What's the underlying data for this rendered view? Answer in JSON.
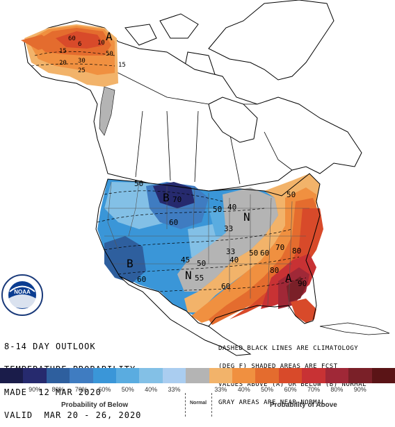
{
  "header": {
    "line1": "8-14 DAY OUTLOOK",
    "line2": "TEMPERATURE PROBABILITY",
    "line3": "MADE  12 MAR 2020",
    "line4": "VALID  MAR 20 - 26, 2020"
  },
  "note": {
    "line1": "DASHED BLACK LINES ARE CLIMATOLOGY",
    "line2": "(DEG F) SHADED AREAS ARE FCST",
    "line3": "VALUES ABOVE (A) OR BELOW (B) NORMAL",
    "line4": "GRAY AREAS ARE NEAR-NORMAL"
  },
  "logo": {
    "text": "NOAA",
    "ring": "NATIONAL OCEANIC AND ATMOSPHERIC ADMINISTRATION · U.S. DEPARTMENT OF COMMERCE"
  },
  "map_labels": {
    "A_alaska": "A",
    "B_north": "B",
    "B_west": "B",
    "N_east": "N",
    "N_south": "N",
    "A_southeast": "A",
    "b70": "70",
    "b60_north": "60",
    "b50_north": "50",
    "b50_mid": "50",
    "b40": "40",
    "b33": "33",
    "b60_west": "60",
    "b50_texas": "50",
    "b55": "55",
    "b45": "45",
    "a33": "33",
    "a40": "40",
    "a50": "50",
    "a60": "60",
    "a60b": "60",
    "a70": "70",
    "a80": "80",
    "a80b": "80",
    "a90": "90",
    "a50_tex": "50",
    "ak60": "60",
    "ak50": "50",
    "ak15": "15",
    "ak20": "20",
    "ak30": "30",
    "ak25": "25",
    "ak10": "10",
    "ak15b": "15",
    "ak6": "6"
  },
  "legend": {
    "colors": [
      "#1a1c4a",
      "#262a6e",
      "#2e5f9e",
      "#3f7cc1",
      "#3a96d8",
      "#5aace0",
      "#83c0e6",
      "#aacdf0",
      "#b4b4b4",
      "#f2b36a",
      "#f09040",
      "#e46c2e",
      "#d84a2a",
      "#c83234",
      "#a02837",
      "#7a2028",
      "#5a1416"
    ],
    "ticks": [
      "90%",
      "80%",
      "70%",
      "60%",
      "50%",
      "40%",
      "33%",
      "33%",
      "40%",
      "50%",
      "60%",
      "70%",
      "80%",
      "90%"
    ],
    "below_caption": "Probability of Below",
    "normal_caption": "Normal",
    "above_caption": "Probability of Above"
  }
}
